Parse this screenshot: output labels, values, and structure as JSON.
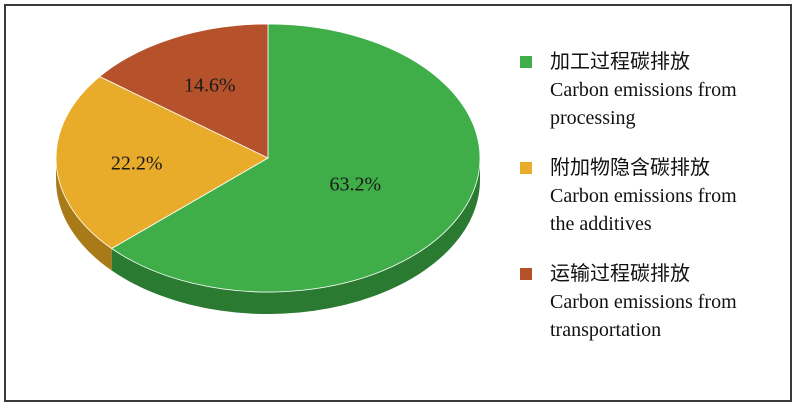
{
  "chart_data": {
    "type": "pie",
    "style": "3d",
    "slices": [
      {
        "label_zh": "加工过程碳排放",
        "label_en": "Carbon emissions from processing",
        "value": 63.2,
        "value_label": "63.2%",
        "color": "#3fae49",
        "side_color": "#2a7a32"
      },
      {
        "label_zh": "附加物隐含碳排放",
        "label_en": "Carbon emissions from the additives",
        "value": 22.2,
        "value_label": "22.2%",
        "color": "#e8ac2a",
        "side_color": "#a97a18"
      },
      {
        "label_zh": "运输过程碳排放",
        "label_en": "Carbon emissions from transportation",
        "value": 14.6,
        "value_label": "14.6%",
        "color": "#b5522b",
        "side_color": "#7e381c"
      }
    ],
    "legend_position": "right"
  },
  "legend": {
    "items": [
      {
        "line1": "加工过程碳排放",
        "line2": "Carbon emissions from",
        "line3": "processing",
        "color": "#3fae49"
      },
      {
        "line1": "附加物隐含碳排放",
        "line2": "Carbon emissions from",
        "line3": "the additives",
        "color": "#e8ac2a"
      },
      {
        "line1": "运输过程碳排放",
        "line2": "Carbon emissions from",
        "line3": "transportation",
        "color": "#b5522b"
      }
    ]
  }
}
